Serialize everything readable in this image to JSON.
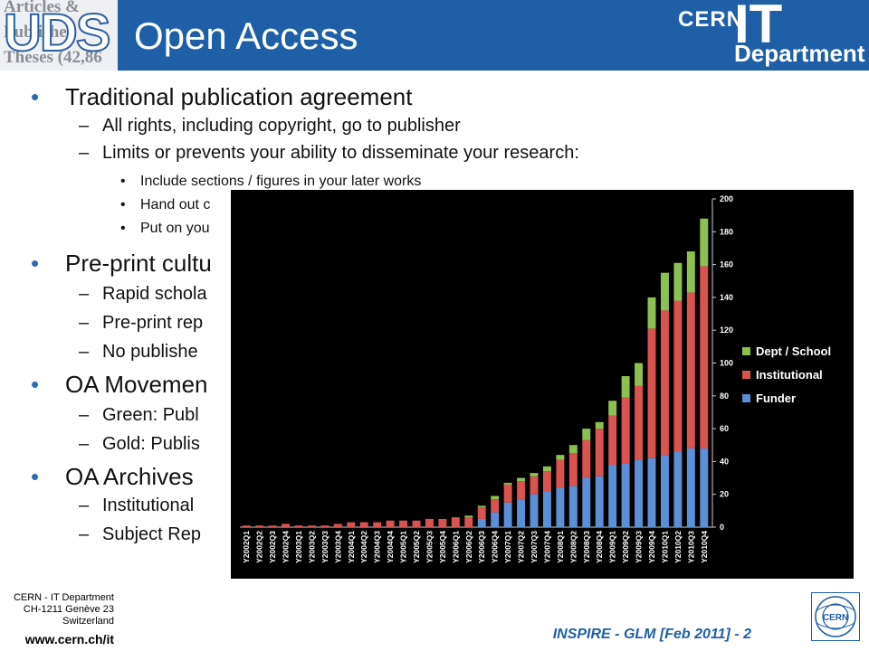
{
  "header": {
    "title": "Open Access",
    "logo_text": "UDS",
    "logo_background_lines": [
      "Articles &",
      "Published",
      "Theses (42,86"
    ],
    "cern_logo": {
      "cern": "CERN",
      "it": "IT",
      "department": "Department"
    },
    "background_color": "#1f5fa8"
  },
  "content": {
    "bullets": [
      {
        "text": "Traditional publication agreement"
      },
      {
        "text": "All rights, including copyright, go to publisher"
      },
      {
        "text": "Limits or prevents your ability to disseminate your research:"
      },
      {
        "text": "Include sections / figures in your later works"
      },
      {
        "text": "Hand out c"
      },
      {
        "text": "Put on you"
      },
      {
        "text": "Pre-print cultu"
      },
      {
        "text": "Rapid schola"
      },
      {
        "text": "Pre-print rep"
      },
      {
        "text": "No publishe"
      },
      {
        "text": "OA Movemen"
      },
      {
        "text": "Green: Publ"
      },
      {
        "text": "Gold: Publis"
      },
      {
        "text": "OA Archives"
      },
      {
        "text": "Institutional"
      },
      {
        "text": "Subject Rep"
      }
    ]
  },
  "footer": {
    "org_lines": [
      "CERN - IT Department",
      "CH-1211 Genève 23",
      "Switzerland"
    ],
    "url": "www.cern.ch/it",
    "slide_label": "INSPIRE - GLM [Feb 2011] - 2"
  },
  "chart_data": {
    "type": "bar",
    "stacked": true,
    "categories": [
      "Y2002Q1",
      "Y2002Q2",
      "Y2002Q3",
      "Y2002Q4",
      "Y2003Q1",
      "Y2003Q2",
      "Y2003Q3",
      "Y2003Q4",
      "Y2004Q1",
      "Y2004Q2",
      "Y2004Q3",
      "Y2004Q4",
      "Y2005Q1",
      "Y2005Q2",
      "Y2005Q3",
      "Y2005Q4",
      "Y2006Q1",
      "Y2006Q2",
      "Y2006Q3",
      "Y2006Q4",
      "Y2007Q1",
      "Y2007Q2",
      "Y2007Q3",
      "Y2007Q4",
      "Y2008Q1",
      "Y2008Q2",
      "Y2008Q3",
      "Y2008Q4",
      "Y2009Q1",
      "Y2009Q2",
      "Y2009Q3",
      "Y2009Q4",
      "Y2010Q1",
      "Y2010Q2",
      "Y2010Q3",
      "Y2010Q4"
    ],
    "series": [
      {
        "name": "Funder",
        "color": "#5b8fd6",
        "values": [
          0,
          0,
          0,
          0,
          0,
          0,
          0,
          0,
          0,
          0,
          0,
          0,
          0,
          0,
          0,
          0,
          0,
          0,
          5,
          9,
          15,
          17,
          20,
          22,
          24,
          25,
          30,
          31,
          38,
          39,
          41,
          42,
          44,
          46,
          48,
          48
        ]
      },
      {
        "name": "Institutional",
        "color": "#d9534f",
        "values": [
          1,
          1,
          1,
          2,
          1,
          1,
          1,
          2,
          3,
          3,
          3,
          4,
          4,
          4,
          5,
          5,
          6,
          6,
          7,
          8,
          11,
          11,
          11,
          12,
          17,
          20,
          23,
          29,
          30,
          40,
          45,
          79,
          88,
          92,
          95,
          111
        ]
      },
      {
        "name": "Dept / School",
        "color": "#8cc152",
        "values": [
          0,
          0,
          0,
          0,
          0,
          0,
          0,
          0,
          0,
          0,
          0,
          0,
          0,
          0,
          0,
          0,
          0,
          1,
          1,
          2,
          1,
          2,
          2,
          3,
          3,
          5,
          7,
          4,
          9,
          13,
          14,
          19,
          23,
          23,
          25,
          29
        ]
      }
    ],
    "ylim": [
      0,
      200
    ],
    "yticks": [
      0,
      20,
      40,
      60,
      80,
      100,
      120,
      140,
      160,
      180,
      200
    ],
    "legend": [
      "Dept / School",
      "Institutional",
      "Funder"
    ],
    "legend_position": "right",
    "background": "#000000",
    "grid": false
  }
}
